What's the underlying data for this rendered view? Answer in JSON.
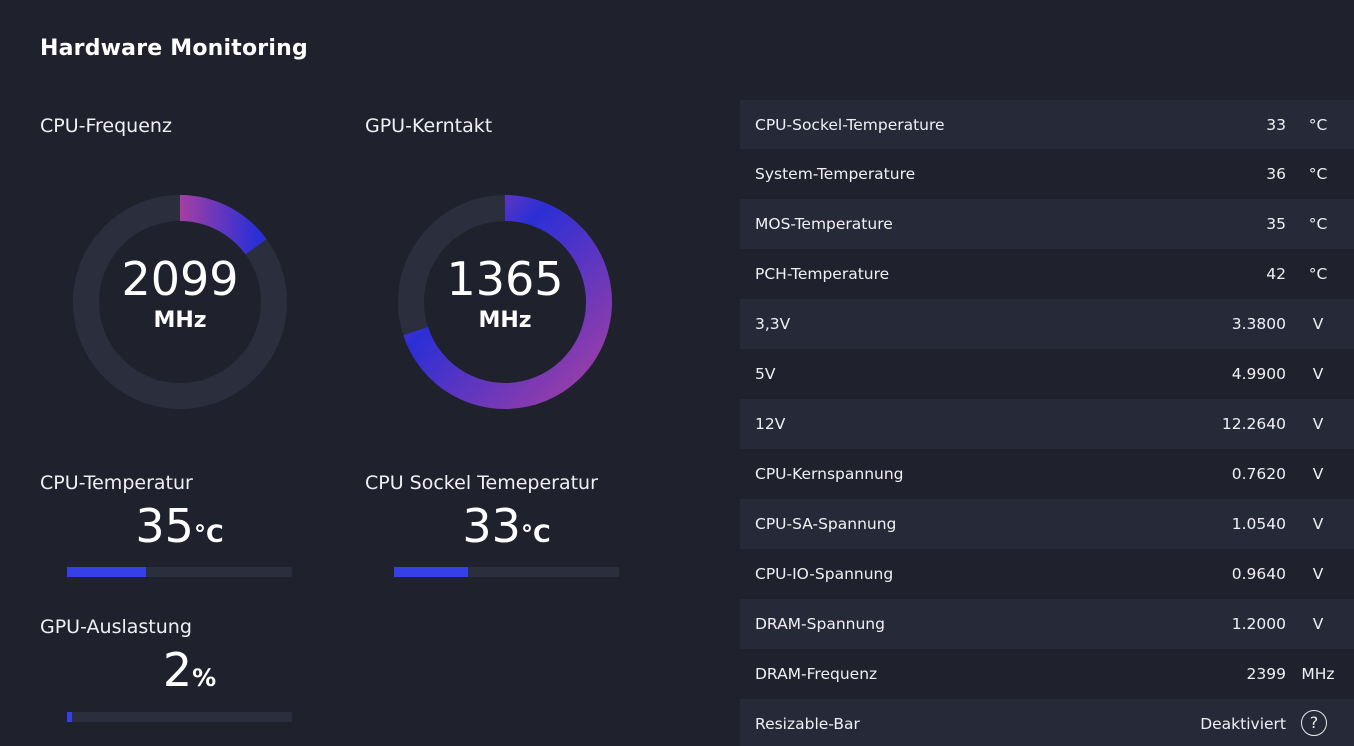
{
  "header": {
    "title": "Hardware Monitoring"
  },
  "colors": {
    "background": "#1f212d",
    "row_alt": "#262938",
    "gauge_track": "#2a2e3d",
    "gauge_blue": "#2b2fd6",
    "gauge_purple": "#a43fa3",
    "bar_fill": "#3540e6"
  },
  "cpu_freq": {
    "label": "CPU-Frequenz",
    "value": "2099",
    "unit": "MHz",
    "fill_fraction": 0.15
  },
  "gpu_clock": {
    "label": "GPU-Kerntakt",
    "value": "1365",
    "unit": "MHz",
    "fill_fraction": 0.7
  },
  "cpu_temp": {
    "label": "CPU-Temperatur",
    "value": "35",
    "unit": "°C",
    "fill_percent": 35
  },
  "cpu_socket_temp": {
    "label": "CPU Sockel Temeperatur",
    "value": "33",
    "unit": "°C",
    "fill_percent": 33
  },
  "gpu_load": {
    "label": "GPU-Auslastung",
    "value": "2",
    "unit": "%",
    "fill_percent": 2
  },
  "sensors": [
    {
      "name": "CPU-Sockel-Temperature",
      "value": "33",
      "unit": "°C"
    },
    {
      "name": "System-Temperature",
      "value": "36",
      "unit": "°C"
    },
    {
      "name": "MOS-Temperature",
      "value": "35",
      "unit": "°C"
    },
    {
      "name": "PCH-Temperature",
      "value": "42",
      "unit": "°C"
    },
    {
      "name": "3,3V",
      "value": "3.3800",
      "unit": "V"
    },
    {
      "name": "5V",
      "value": "4.9900",
      "unit": "V"
    },
    {
      "name": "12V",
      "value": "12.2640",
      "unit": "V"
    },
    {
      "name": "CPU-Kernspannung",
      "value": "0.7620",
      "unit": "V"
    },
    {
      "name": "CPU-SA-Spannung",
      "value": "1.0540",
      "unit": "V"
    },
    {
      "name": "CPU-IO-Spannung",
      "value": "0.9640",
      "unit": "V"
    },
    {
      "name": "DRAM-Spannung",
      "value": "1.2000",
      "unit": "V"
    },
    {
      "name": "DRAM-Frequenz",
      "value": "2399",
      "unit": "MHz"
    },
    {
      "name": "Resizable-Bar",
      "value": "Deaktiviert",
      "help_icon": "question-circle-icon",
      "help_glyph": "?"
    }
  ]
}
